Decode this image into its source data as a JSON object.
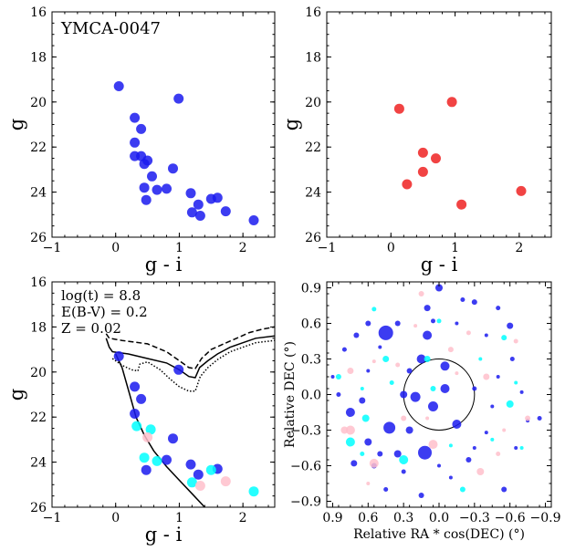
{
  "chart_data": [
    {
      "type": "scatter",
      "title": "YMCA-0047",
      "xlabel": "g - i",
      "ylabel": "g",
      "xlim": [
        -1,
        2.5
      ],
      "ylim": [
        26,
        16
      ],
      "y_inverted": true,
      "xticks": [
        "−1",
        "0",
        "1",
        "2"
      ],
      "yticks": [
        "16",
        "18",
        "20",
        "22",
        "24",
        "26"
      ],
      "series": [
        {
          "color": "#1a1aee",
          "points": [
            [
              0.05,
              19.3
            ],
            [
              0.99,
              19.85
            ],
            [
              0.3,
              20.7
            ],
            [
              0.4,
              21.2
            ],
            [
              0.3,
              21.8
            ],
            [
              0.3,
              22.4
            ],
            [
              0.4,
              22.4
            ],
            [
              0.5,
              22.6
            ],
            [
              0.45,
              22.75
            ],
            [
              0.9,
              22.95
            ],
            [
              0.57,
              23.3
            ],
            [
              0.45,
              23.8
            ],
            [
              0.65,
              23.9
            ],
            [
              0.8,
              23.85
            ],
            [
              1.18,
              24.05
            ],
            [
              0.48,
              24.35
            ],
            [
              1.5,
              24.3
            ],
            [
              1.6,
              24.25
            ],
            [
              1.3,
              24.55
            ],
            [
              1.2,
              24.9
            ],
            [
              1.33,
              25.05
            ],
            [
              1.73,
              24.85
            ],
            [
              2.17,
              25.25
            ]
          ]
        }
      ]
    },
    {
      "type": "scatter",
      "xlabel": "g - i",
      "ylabel": "g",
      "xlim": [
        -1,
        2.5
      ],
      "ylim": [
        26,
        16
      ],
      "y_inverted": true,
      "xticks": [
        "−1",
        "0",
        "1",
        "2"
      ],
      "yticks": [
        "16",
        "18",
        "20",
        "22",
        "24",
        "26"
      ],
      "series": [
        {
          "color": "#ee2222",
          "points": [
            [
              0.13,
              20.3
            ],
            [
              0.95,
              20.0
            ],
            [
              0.5,
              22.25
            ],
            [
              0.7,
              22.5
            ],
            [
              0.5,
              23.1
            ],
            [
              0.25,
              23.65
            ],
            [
              1.1,
              24.55
            ],
            [
              2.03,
              23.95
            ]
          ]
        }
      ]
    },
    {
      "type": "scatter",
      "xlabel": "g - i",
      "ylabel": "g",
      "xlim": [
        -1,
        2.5
      ],
      "ylim": [
        26,
        16
      ],
      "y_inverted": true,
      "xticks": [
        "−1",
        "0",
        "1",
        "2"
      ],
      "yticks": [
        "16",
        "18",
        "20",
        "22",
        "24",
        "26"
      ],
      "annotations": [
        "log(t) = 8.8",
        "E(B-V) = 0.2",
        "Z = 0.02"
      ],
      "series": [
        {
          "color": "#1a1aee",
          "points": [
            [
              0.05,
              19.3
            ],
            [
              0.99,
              19.9
            ],
            [
              0.3,
              20.65
            ],
            [
              0.4,
              21.2
            ],
            [
              0.3,
              21.85
            ],
            [
              0.9,
              22.95
            ],
            [
              0.8,
              23.9
            ],
            [
              0.48,
              24.35
            ],
            [
              1.18,
              24.1
            ],
            [
              1.3,
              24.55
            ],
            [
              1.6,
              24.3
            ]
          ]
        },
        {
          "color": "#00ffff",
          "points": [
            [
              0.33,
              22.4
            ],
            [
              0.55,
              22.55
            ],
            [
              0.45,
              23.8
            ],
            [
              0.65,
              23.95
            ],
            [
              1.2,
              24.9
            ],
            [
              1.5,
              24.35
            ],
            [
              2.17,
              25.3
            ]
          ]
        },
        {
          "color": "#ffc0cb",
          "points": [
            [
              0.5,
              22.9
            ],
            [
              1.33,
              25.05
            ],
            [
              1.73,
              24.85
            ]
          ]
        }
      ],
      "isochrones": [
        {
          "style": "solid",
          "points": [
            [
              -0.15,
              18.5
            ],
            [
              -0.1,
              18.9
            ],
            [
              -0.05,
              19.1
            ],
            [
              0.2,
              19.2
            ],
            [
              0.5,
              19.4
            ],
            [
              0.8,
              19.6
            ],
            [
              1.0,
              19.9
            ],
            [
              1.15,
              20.2
            ],
            [
              1.25,
              20.25
            ],
            [
              1.32,
              19.8
            ],
            [
              1.45,
              19.5
            ],
            [
              1.6,
              19.2
            ],
            [
              1.8,
              18.9
            ],
            [
              2.0,
              18.7
            ],
            [
              2.2,
              18.5
            ],
            [
              2.5,
              18.4
            ]
          ]
        },
        {
          "style": "dashed",
          "points": [
            [
              -0.15,
              18.3
            ],
            [
              -0.1,
              18.5
            ],
            [
              0.1,
              18.6
            ],
            [
              0.5,
              18.75
            ],
            [
              0.8,
              19.1
            ],
            [
              1.0,
              19.5
            ],
            [
              1.15,
              19.8
            ],
            [
              1.25,
              19.85
            ],
            [
              1.35,
              19.4
            ],
            [
              1.5,
              19.0
            ],
            [
              1.7,
              18.75
            ],
            [
              1.9,
              18.5
            ],
            [
              2.1,
              18.25
            ],
            [
              2.3,
              18.1
            ],
            [
              2.5,
              18.0
            ]
          ]
        },
        {
          "style": "dotted",
          "points": [
            [
              -0.05,
              19.4
            ],
            [
              0.1,
              19.7
            ],
            [
              0.25,
              19.9
            ],
            [
              0.35,
              19.95
            ],
            [
              0.38,
              19.65
            ],
            [
              0.5,
              19.55
            ],
            [
              0.7,
              19.9
            ],
            [
              0.85,
              20.3
            ],
            [
              1.0,
              20.65
            ],
            [
              1.15,
              20.85
            ],
            [
              1.25,
              20.85
            ],
            [
              1.33,
              20.2
            ],
            [
              1.45,
              19.8
            ],
            [
              1.6,
              19.45
            ],
            [
              1.8,
              19.1
            ],
            [
              2.0,
              18.9
            ],
            [
              2.2,
              18.7
            ],
            [
              2.5,
              18.6
            ]
          ]
        },
        {
          "style": "solid",
          "points": [
            [
              0.0,
              19.2
            ],
            [
              0.1,
              19.8
            ],
            [
              0.22,
              21.0
            ],
            [
              0.32,
              22.0
            ],
            [
              0.45,
              22.8
            ],
            [
              0.6,
              23.5
            ],
            [
              0.8,
              24.2
            ],
            [
              1.0,
              24.8
            ],
            [
              1.2,
              25.4
            ],
            [
              1.4,
              26.0
            ]
          ]
        }
      ]
    },
    {
      "type": "scatter",
      "xlabel": "Relative RA * cos(DEC) (°)",
      "ylabel": "Relative DEC (°)",
      "xlim": [
        0.95,
        -0.95
      ],
      "ylim": [
        -0.95,
        0.95
      ],
      "xticks": [
        "0.9",
        "0.6",
        "0.3",
        "0.0",
        "−0.3",
        "−0.6",
        "−0.9"
      ],
      "yticks": [
        "−0.9",
        "−0.6",
        "−0.3",
        "0.0",
        "0.3",
        "0.6",
        "0.9"
      ],
      "circle_radius": 0.3,
      "series": [
        {
          "color": "#1a1aee",
          "points": [
            [
              0.45,
              0.52
            ],
            [
              0.12,
              -0.49
            ],
            [
              0.42,
              -0.28
            ],
            [
              0.2,
              -0.02
            ],
            [
              -0.05,
              0.24
            ],
            [
              0.05,
              -0.1
            ],
            [
              -0.2,
              0.8
            ],
            [
              0.6,
              0.2
            ],
            [
              0.75,
              -0.15
            ],
            [
              0.3,
              0.0
            ],
            [
              -0.4,
              -0.32
            ],
            [
              -0.3,
              0.05
            ],
            [
              0.55,
              -0.6
            ],
            [
              0.7,
              0.5
            ],
            [
              -0.6,
              0.58
            ],
            [
              -0.7,
              0.02
            ],
            [
              0.3,
              -0.65
            ],
            [
              -0.1,
              -0.7
            ],
            [
              0.1,
              0.5
            ],
            [
              0.6,
              -0.4
            ],
            [
              -0.5,
              0.15
            ],
            [
              0.85,
              0.0
            ],
            [
              -0.25,
              -0.55
            ],
            [
              0.35,
              0.6
            ],
            [
              0.1,
              0.73
            ],
            [
              -0.45,
              -0.1
            ],
            [
              0.8,
              0.38
            ],
            [
              -0.75,
              -0.22
            ],
            [
              0.15,
              0.3
            ],
            [
              0.25,
              -0.3
            ],
            [
              -0.15,
              0.6
            ],
            [
              0.45,
              -0.8
            ],
            [
              -0.3,
              0.78
            ],
            [
              0.5,
              -0.5
            ],
            [
              0.65,
              -0.05
            ],
            [
              -0.4,
              0.5
            ],
            [
              -0.85,
              -0.2
            ],
            [
              0.5,
              0.4
            ],
            [
              -0.15,
              -0.25
            ],
            [
              0.0,
              0.9
            ],
            [
              -0.65,
              -0.45
            ],
            [
              0.05,
              0.62
            ],
            [
              -0.55,
              -0.8
            ],
            [
              0.25,
              0.2
            ],
            [
              0.72,
              -0.58
            ],
            [
              -0.3,
              -0.45
            ],
            [
              -0.62,
              0.3
            ],
            [
              0.9,
              0.15
            ],
            [
              -0.05,
              0.05
            ],
            [
              0.35,
              -0.5
            ],
            [
              0.0,
              -0.6
            ],
            [
              -0.5,
              0.73
            ],
            [
              0.15,
              -0.85
            ],
            [
              0.6,
              0.6
            ]
          ]
        },
        {
          "color": "#00ffff",
          "points": [
            [
              0.62,
              -0.2
            ],
            [
              -0.1,
              -0.43
            ],
            [
              0.4,
              0.1
            ],
            [
              -0.55,
              0.48
            ],
            [
              0.85,
              0.15
            ],
            [
              0.1,
              0.3
            ],
            [
              -0.7,
              -0.45
            ],
            [
              0.55,
              0.72
            ],
            [
              -0.35,
              0.3
            ],
            [
              0.3,
              -0.55
            ],
            [
              -0.6,
              -0.08
            ],
            [
              0.65,
              0.05
            ],
            [
              0.0,
              0.62
            ],
            [
              -0.2,
              -0.8
            ],
            [
              0.05,
              0.05
            ],
            [
              0.45,
              0.3
            ],
            [
              -0.65,
              0.1
            ],
            [
              0.65,
              -0.5
            ],
            [
              -0.45,
              -0.38
            ],
            [
              0.75,
              -0.4
            ]
          ]
        },
        {
          "color": "#ffc0cb",
          "points": [
            [
              0.55,
              -0.58
            ],
            [
              0.8,
              -0.3
            ],
            [
              0.55,
              0.28
            ],
            [
              0.35,
              0.25
            ],
            [
              -0.1,
              0.38
            ],
            [
              -0.75,
              -0.2
            ],
            [
              0.75,
              0.2
            ],
            [
              -0.15,
              0.18
            ],
            [
              -0.5,
              -0.5
            ],
            [
              0.2,
              0.58
            ],
            [
              0.05,
              -0.42
            ],
            [
              -0.35,
              -0.65
            ],
            [
              0.6,
              -0.75
            ],
            [
              -0.65,
              0.45
            ],
            [
              0.3,
              -0.2
            ],
            [
              0.15,
              0.85
            ],
            [
              -0.4,
              0.15
            ],
            [
              0.1,
              -0.2
            ],
            [
              -0.25,
              0.52
            ],
            [
              -0.55,
              -0.3
            ],
            [
              0.75,
              -0.3
            ]
          ]
        }
      ]
    }
  ]
}
